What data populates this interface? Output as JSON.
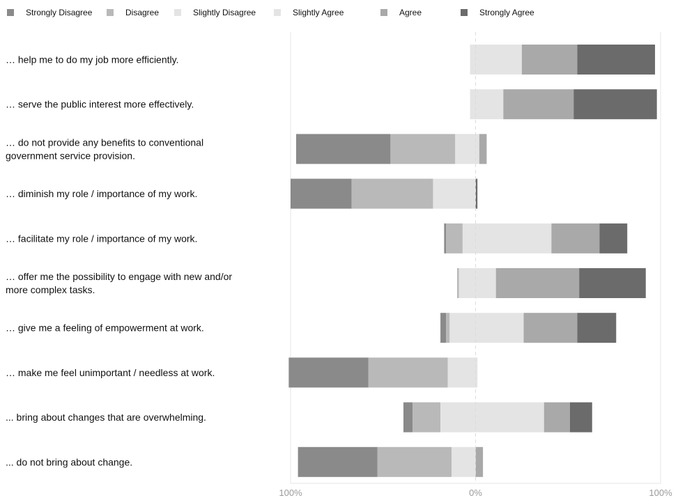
{
  "chart_data": {
    "type": "bar",
    "subtype": "diverging-stacked-horizontal",
    "legend_position": "top",
    "colors": {
      "Strongly Disagree": "#8a8a8a",
      "Disagree": "#b9b9b9",
      "Slightly Disagree": "#e4e4e4",
      "Slightly Agree": "#e4e4e4",
      "Agree": "#a9a9a9",
      "Strongly Agree": "#6b6b6b"
    },
    "series_names": [
      "Strongly Disagree",
      "Disagree",
      "Slightly Disagree",
      "Slightly Agree",
      "Agree",
      "Strongly Agree"
    ],
    "categories": [
      [
        "… help me to do my job more efficiently."
      ],
      [
        "… serve the public interest more effectively."
      ],
      [
        "… do not provide any benefits to conventional",
        "government service provision."
      ],
      [
        "… diminish my role / importance of my work."
      ],
      [
        "… facilitate my role / importance of my work."
      ],
      [
        "… offer me the possibility to engage with new and/or",
        "more complex tasks."
      ],
      [
        "… give me a feeling of empowerment at work."
      ],
      [
        "… make me feel unimportant / needless at work."
      ],
      [
        "... bring about changes that are overwhelming."
      ],
      [
        "... do not bring about change."
      ]
    ],
    "values": [
      [
        0,
        0,
        3,
        25,
        30,
        42
      ],
      [
        0,
        0,
        3,
        15,
        38,
        45
      ],
      [
        51,
        35,
        11,
        2,
        4,
        0
      ],
      [
        33,
        44,
        23,
        0,
        0,
        1
      ],
      [
        1,
        9,
        7,
        41,
        26,
        15
      ],
      [
        0,
        1,
        9,
        11,
        45,
        36
      ],
      [
        3,
        2,
        14,
        26,
        29,
        21
      ],
      [
        43,
        43,
        15,
        1,
        0,
        0
      ],
      [
        5,
        15,
        19,
        37,
        14,
        12
      ],
      [
        43,
        40,
        13,
        0,
        4,
        0
      ]
    ],
    "unit": "%",
    "xlim": [
      -100,
      100
    ],
    "x_ticks": [
      "100%",
      "0%",
      "100%"
    ],
    "grid": false,
    "zero_line": "dashed"
  }
}
